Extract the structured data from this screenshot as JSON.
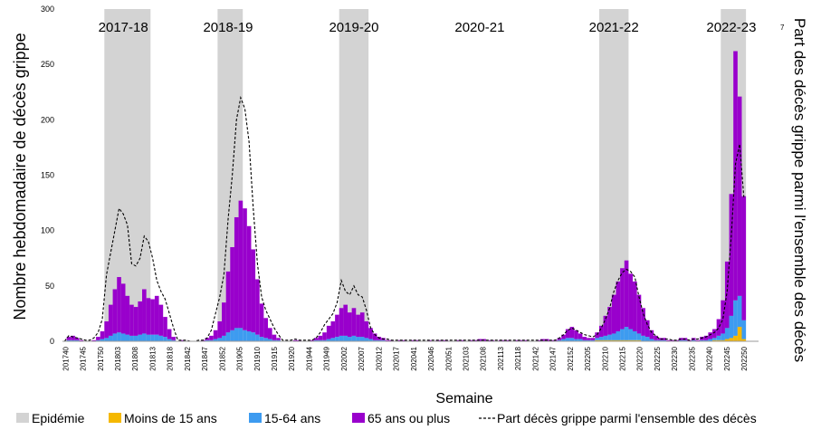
{
  "chart_data": {
    "type": "bar",
    "stacked": true,
    "xlabel": "Semaine",
    "ylabel": "Nombre hebdomadaire de décès grippe",
    "y2label": "Part des décès grippe parmi l'ensemble des décès",
    "ylim": [
      0,
      300
    ],
    "yticks": [
      0,
      50,
      100,
      150,
      200,
      250,
      300
    ],
    "y2lim": [
      0,
      7
    ],
    "y2ticks": [
      7
    ],
    "tick_labels": [
      "201740",
      "201745",
      "201750",
      "201803",
      "201808",
      "201813",
      "201818",
      "201842",
      "201847",
      "201852",
      "201905",
      "201910",
      "201915",
      "201920",
      "201944",
      "201949",
      "202002",
      "202007",
      "202012",
      "202017",
      "202041",
      "202046",
      "202051",
      "202103",
      "202108",
      "202113",
      "202118",
      "202142",
      "202147",
      "202152",
      "202205",
      "202210",
      "202215",
      "202220",
      "202225",
      "202230",
      "202235",
      "202240",
      "202245",
      "202250"
    ],
    "epidemic_periods": [
      {
        "label": "2017-18",
        "start": 10,
        "end": 20
      },
      {
        "label": "2018-19",
        "start": 37,
        "end": 42
      },
      {
        "label": "2019-20",
        "start": 66,
        "end": 72
      },
      {
        "label": "2021-22",
        "start": 128,
        "end": 134
      },
      {
        "label": "2022-23",
        "start": 157,
        "end": 162
      }
    ],
    "season_labels": [
      {
        "label": "2017-18",
        "x": 14
      },
      {
        "label": "2018-19",
        "x": 39
      },
      {
        "label": "2019-20",
        "x": 69
      },
      {
        "label": "2020-21",
        "x": 99
      },
      {
        "label": "2021-22",
        "x": 131
      },
      {
        "label": "2022-23",
        "x": 159
      }
    ],
    "legend": {
      "position": "bottom",
      "items": [
        {
          "label": "Epidémie",
          "kind": "box",
          "color": "#d3d3d3"
        },
        {
          "label": "Moins de 15 ans",
          "kind": "box",
          "color": "#f5b800"
        },
        {
          "label": "15-64 ans",
          "kind": "box",
          "color": "#3d9bf0"
        },
        {
          "label": "65 ans ou plus",
          "kind": "box",
          "color": "#9900cc"
        },
        {
          "label": "Part décès grippe parmi l'ensemble des décès",
          "kind": "dash",
          "color": "#000000"
        }
      ]
    },
    "segments": [
      {
        "x0": 0,
        "x1": 6,
        "values_65plus": [
          0,
          3,
          4,
          2,
          1,
          0,
          0
        ],
        "values_15_64": [
          0,
          1,
          1,
          1,
          0,
          0,
          0
        ],
        "values_under15": [
          0,
          0,
          0,
          0,
          0,
          0,
          0
        ],
        "values_share": [
          0,
          5,
          4,
          3,
          2,
          1,
          1
        ]
      },
      {
        "x0": 7,
        "x1": 26,
        "values_65plus": [
          1,
          3,
          7,
          15,
          28,
          40,
          50,
          45,
          35,
          28,
          26,
          30,
          40,
          33,
          32,
          35,
          28,
          18,
          9,
          3
        ],
        "values_15_64": [
          0,
          1,
          2,
          3,
          5,
          7,
          8,
          7,
          6,
          5,
          5,
          6,
          7,
          6,
          6,
          6,
          5,
          4,
          2,
          1
        ],
        "values_under15": [
          0,
          0,
          0,
          0,
          0,
          0,
          0,
          0,
          0,
          0,
          0,
          0,
          0,
          0,
          0,
          0,
          0,
          0,
          0,
          0
        ],
        "values_share": [
          3,
          8,
          20,
          60,
          80,
          100,
          120,
          115,
          105,
          70,
          68,
          75,
          95,
          90,
          75,
          55,
          45,
          38,
          25,
          12
        ]
      },
      {
        "x0": 27,
        "x1": 33,
        "values_65plus": [
          0,
          1,
          0,
          0,
          0,
          0,
          1
        ],
        "values_15_64": [
          0,
          0,
          0,
          0,
          0,
          0,
          0
        ],
        "values_under15": [
          0,
          0,
          0,
          0,
          0,
          0,
          0
        ],
        "values_share": [
          1,
          1,
          1,
          0,
          0,
          1,
          1
        ]
      },
      {
        "x0": 34,
        "x1": 51,
        "values_65plus": [
          2,
          4,
          8,
          15,
          30,
          55,
          75,
          100,
          115,
          110,
          95,
          75,
          50,
          30,
          18,
          10,
          5,
          2
        ],
        "values_15_64": [
          1,
          1,
          2,
          3,
          5,
          8,
          10,
          12,
          12,
          10,
          9,
          8,
          6,
          4,
          3,
          2,
          1,
          1
        ],
        "values_under15": [
          0,
          0,
          0,
          0,
          0,
          0,
          0,
          0,
          0,
          0,
          0,
          0,
          0,
          0,
          0,
          0,
          0,
          0
        ],
        "values_share": [
          3,
          10,
          25,
          40,
          60,
          110,
          150,
          200,
          220,
          210,
          180,
          120,
          70,
          40,
          28,
          20,
          12,
          6
        ]
      },
      {
        "x0": 52,
        "x1": 59,
        "values_65plus": [
          0,
          0,
          0,
          1,
          1,
          0,
          0,
          1
        ],
        "values_15_64": [
          0,
          0,
          0,
          0,
          0,
          0,
          0,
          0
        ],
        "values_under15": [
          0,
          0,
          0,
          0,
          0,
          0,
          0,
          0
        ],
        "values_share": [
          1,
          1,
          1,
          2,
          1,
          1,
          1,
          1
        ]
      },
      {
        "x0": 60,
        "x1": 78,
        "values_65plus": [
          2,
          4,
          7,
          12,
          15,
          20,
          25,
          28,
          22,
          25,
          20,
          22,
          15,
          10,
          6,
          3,
          2,
          1,
          1
        ],
        "values_15_64": [
          1,
          1,
          1,
          2,
          3,
          4,
          5,
          5,
          4,
          5,
          4,
          4,
          3,
          2,
          1,
          1,
          1,
          0,
          0
        ],
        "values_under15": [
          0,
          0,
          0,
          0,
          0,
          0,
          0,
          0,
          0,
          0,
          0,
          0,
          0,
          0,
          0,
          0,
          0,
          0,
          0
        ],
        "values_share": [
          3,
          8,
          15,
          20,
          25,
          35,
          55,
          45,
          42,
          50,
          42,
          40,
          28,
          12,
          6,
          3,
          2,
          2,
          1
        ]
      },
      {
        "x0": 79,
        "x1": 117,
        "values_65plus": [
          0,
          1,
          1,
          0,
          1,
          1,
          0,
          0,
          1,
          0,
          1,
          1,
          1,
          0,
          0,
          1,
          1,
          0,
          1,
          1,
          2,
          2,
          1,
          1,
          0,
          1,
          1,
          1,
          0,
          1,
          1,
          1,
          0,
          0,
          1,
          2,
          2,
          1,
          1
        ],
        "values_15_64": [
          0,
          0,
          0,
          0,
          0,
          0,
          0,
          0,
          0,
          0,
          0,
          0,
          0,
          0,
          0,
          0,
          0,
          0,
          0,
          0,
          0,
          0,
          0,
          0,
          0,
          0,
          0,
          0,
          0,
          0,
          0,
          0,
          0,
          0,
          0,
          0,
          0,
          0,
          0
        ],
        "values_under15": [
          0,
          0,
          0,
          0,
          0,
          0,
          0,
          0,
          0,
          0,
          0,
          0,
          0,
          0,
          0,
          0,
          0,
          0,
          0,
          0,
          0,
          0,
          0,
          0,
          0,
          0,
          0,
          0,
          0,
          0,
          0,
          0,
          0,
          0,
          0,
          0,
          0,
          0,
          0
        ],
        "values_share": [
          1,
          1,
          1,
          1,
          1,
          1,
          1,
          1,
          1,
          1,
          1,
          1,
          1,
          1,
          1,
          1,
          1,
          1,
          1,
          1,
          1,
          1,
          1,
          1,
          1,
          1,
          1,
          1,
          1,
          1,
          1,
          1,
          1,
          1,
          1,
          1,
          1,
          1,
          1
        ]
      },
      {
        "x0": 118,
        "x1": 126,
        "values_65plus": [
          2,
          4,
          8,
          10,
          8,
          5,
          3,
          2,
          2
        ],
        "values_15_64": [
          1,
          2,
          3,
          3,
          2,
          2,
          1,
          1,
          1
        ],
        "values_under15": [
          0,
          0,
          0,
          0,
          0,
          0,
          0,
          0,
          0
        ],
        "values_share": [
          3,
          6,
          10,
          12,
          10,
          8,
          6,
          5,
          4
        ]
      },
      {
        "x0": 127,
        "x1": 141,
        "values_65plus": [
          5,
          10,
          18,
          25,
          35,
          45,
          55,
          60,
          50,
          45,
          35,
          25,
          15,
          8,
          4
        ],
        "values_15_64": [
          2,
          3,
          4,
          5,
          6,
          8,
          10,
          12,
          10,
          8,
          6,
          5,
          4,
          2,
          1
        ],
        "values_under15": [
          1,
          1,
          1,
          1,
          1,
          1,
          1,
          1,
          1,
          1,
          1,
          0,
          0,
          0,
          0
        ],
        "values_share": [
          6,
          12,
          20,
          30,
          45,
          55,
          62,
          65,
          63,
          58,
          40,
          25,
          15,
          8,
          5
        ]
      },
      {
        "x0": 142,
        "x1": 154,
        "values_65plus": [
          2,
          2,
          1,
          1,
          1,
          2,
          2,
          1,
          2,
          1,
          3,
          4,
          6
        ],
        "values_15_64": [
          1,
          1,
          0,
          0,
          0,
          1,
          1,
          0,
          1,
          0,
          1,
          1,
          2
        ],
        "values_under15": [
          0,
          0,
          0,
          0,
          0,
          0,
          0,
          0,
          0,
          0,
          0,
          0,
          0
        ],
        "values_share": [
          2,
          2,
          2,
          1,
          1,
          2,
          2,
          1,
          2,
          2,
          3,
          4,
          6
        ]
      },
      {
        "x0": 155,
        "x1": 162,
        "values_65plus": [
          8,
          15,
          30,
          60,
          110,
          225,
          180,
          112
        ],
        "values_15_64": [
          2,
          4,
          6,
          10,
          20,
          32,
          28,
          17
        ],
        "values_under15": [
          1,
          1,
          1,
          2,
          3,
          5,
          13,
          2
        ],
        "values_share": [
          8,
          12,
          20,
          45,
          95,
          160,
          178,
          130
        ]
      }
    ]
  }
}
